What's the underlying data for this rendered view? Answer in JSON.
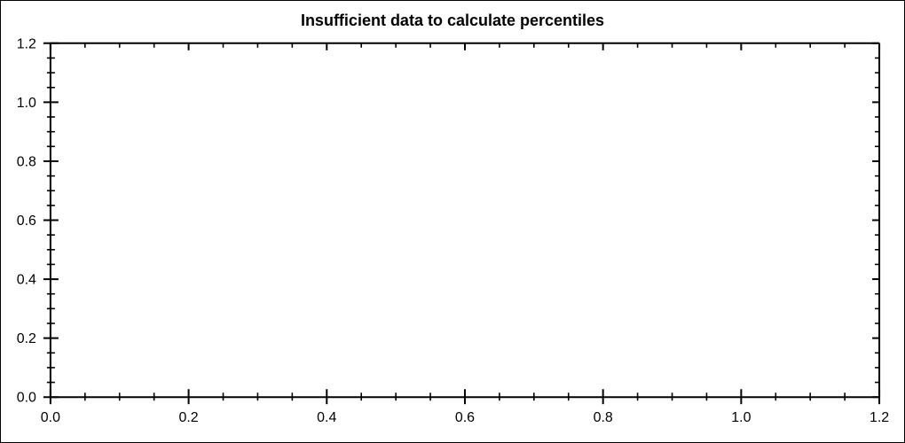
{
  "window": {
    "background": "#ffffff",
    "border_color": "#000000"
  },
  "chart_data": {
    "type": "scatter",
    "title": "Insufficient data to calculate percentiles",
    "series": [],
    "xlabel": "",
    "ylabel": "",
    "xlim": [
      0.0,
      1.2
    ],
    "ylim": [
      0.0,
      1.2
    ],
    "x_tick_labels": [
      "0.0",
      "0.2",
      "0.4",
      "0.6",
      "0.8",
      "1.0",
      "1.2"
    ],
    "y_tick_labels": [
      "0.0",
      "0.2",
      "0.4",
      "0.6",
      "0.8",
      "1.0",
      "1.2"
    ],
    "major_tick_interval": 0.2,
    "minor_tick_interval": 0.05,
    "grid": false,
    "legend_visible": false,
    "frame": "box",
    "tick_style": "cross-on-left-bottom-inward-on-top-right",
    "colors": {
      "axis": "#000000",
      "tick_labels": "#000000",
      "title": "#000000",
      "plot_background": "#ffffff"
    }
  }
}
